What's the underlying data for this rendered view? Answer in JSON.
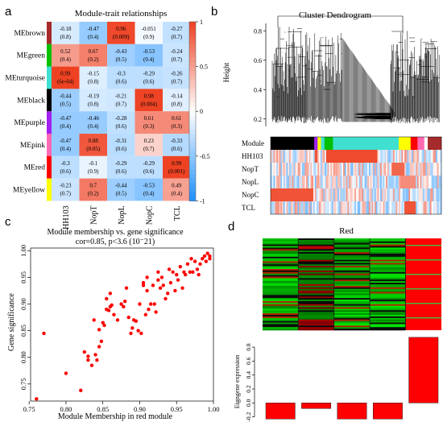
{
  "panels": {
    "a": "a",
    "b": "b",
    "c": "c",
    "d": "d"
  },
  "chart_data": [
    {
      "id": "module-trait",
      "type": "heatmap",
      "title": "Module-trait relationships",
      "rows": [
        "MEbrown",
        "MEgreen",
        "MEturquoise",
        "MEblack",
        "MEpurple",
        "MEpink",
        "MEred",
        "MEyellow"
      ],
      "row_colors": [
        "#a52a2a",
        "#00c000",
        "#40e0d0",
        "#000000",
        "#a020f0",
        "#ff69b4",
        "#ff0000",
        "#ffff00"
      ],
      "columns": [
        "HH103",
        "NopT",
        "NopL",
        "NopC",
        "TCL"
      ],
      "values": [
        [
          -0.18,
          -0.47,
          0.96,
          -0.051,
          -0.27
        ],
        [
          0.52,
          0.67,
          -0.43,
          -0.53,
          -0.24
        ],
        [
          0.99,
          -0.15,
          -0.3,
          -0.29,
          -0.26
        ],
        [
          -0.44,
          -0.19,
          -0.21,
          0.98,
          -0.14
        ],
        [
          -0.47,
          -0.46,
          -0.28,
          0.61,
          0.61
        ],
        [
          -0.47,
          0.88,
          -0.31,
          0.23,
          -0.33
        ],
        [
          -0.3,
          -0.1,
          -0.29,
          -0.29,
          0.99
        ],
        [
          -0.23,
          0.7,
          -0.44,
          -0.53,
          0.49
        ]
      ],
      "pvalues": [
        [
          "(0.8)",
          "(0.4)",
          "(0.009)",
          "(0.9)",
          "(0.7)"
        ],
        [
          "(0.4)",
          "(0.2)",
          "(0.5)",
          "(0.4)",
          "(0.7)"
        ],
        [
          "(6e-04)",
          "(0.8)",
          "(0.6)",
          "(0.6)",
          "(0.7)"
        ],
        [
          "(0.5)",
          "(0.8)",
          "(0.7)",
          "(0.004)",
          "(0.8)"
        ],
        [
          "(0.4)",
          "(0.4)",
          "(0.6)",
          "(0.3)",
          "(0.3)"
        ],
        [
          "(0.4)",
          "(0.05)",
          "(0.6)",
          "(0.7)",
          "(0.6)"
        ],
        [
          "(0.6)",
          "(0.9)",
          "(0.6)",
          "(0.6)",
          "(0.001)"
        ],
        [
          "(0.7)",
          "(0.2)",
          "(0.5)",
          "(0.4)",
          "(0.4)"
        ]
      ],
      "colorbar_ticks": [
        "1",
        "0.5",
        "0",
        "-0.5",
        "-1"
      ],
      "vmin": -1,
      "vmax": 1
    },
    {
      "id": "dendrogram",
      "type": "other",
      "title": "Cluster Dendrogram",
      "ylabel": "Height",
      "yticks": [
        "0.8",
        "0.6",
        "0.4",
        "0.2"
      ],
      "track_labels": [
        "Module",
        "HH103",
        "NopT",
        "NopL",
        "NopC",
        "TCL"
      ],
      "module_segments": [
        {
          "color": "#000000",
          "w": 0.255
        },
        {
          "color": "#a020f0",
          "w": 0.02
        },
        {
          "color": "#ffff00",
          "w": 0.02
        },
        {
          "color": "#40e0d0",
          "w": 0.02
        },
        {
          "color": "#00c000",
          "w": 0.05
        },
        {
          "color": "#40e0d0",
          "w": 0.385
        },
        {
          "color": "#ffff00",
          "w": 0.07
        },
        {
          "color": "#ff0000",
          "w": 0.04
        },
        {
          "color": "#ff69b4",
          "w": 0.04
        },
        {
          "color": "#ffffff",
          "w": 0.02
        },
        {
          "color": "#a52a2a",
          "w": 0.08
        }
      ]
    },
    {
      "id": "mm-gs",
      "type": "scatter",
      "title": "Module membership vs. gene significance",
      "subtitle": "cor=0.85, p<3.6 (10⁻21)",
      "xlabel": "Module Membership in red module",
      "ylabel": "Gene significance",
      "xticks": [
        0.75,
        0.8,
        0.85,
        0.9,
        0.95,
        1.0
      ],
      "yticks": [
        0.75,
        0.8,
        0.85,
        0.9,
        0.95,
        1.0
      ],
      "xlim": [
        0.752,
        1.0
      ],
      "ylim": [
        0.718,
        1.005
      ],
      "x": [
        0.76,
        0.77,
        0.8,
        0.82,
        0.825,
        0.83,
        0.83,
        0.835,
        0.838,
        0.84,
        0.842,
        0.845,
        0.845,
        0.848,
        0.85,
        0.852,
        0.855,
        0.855,
        0.858,
        0.86,
        0.86,
        0.862,
        0.865,
        0.87,
        0.875,
        0.878,
        0.88,
        0.882,
        0.885,
        0.888,
        0.89,
        0.892,
        0.895,
        0.898,
        0.9,
        0.902,
        0.905,
        0.905,
        0.908,
        0.91,
        0.91,
        0.912,
        0.915,
        0.918,
        0.92,
        0.922,
        0.925,
        0.925,
        0.928,
        0.93,
        0.932,
        0.935,
        0.938,
        0.94,
        0.942,
        0.945,
        0.948,
        0.95,
        0.952,
        0.955,
        0.958,
        0.96,
        0.962,
        0.965,
        0.968,
        0.97,
        0.972,
        0.975,
        0.978,
        0.98,
        0.982,
        0.985,
        0.988,
        0.99,
        0.992,
        0.995,
        0.995
      ],
      "y": [
        0.722,
        0.845,
        0.77,
        0.738,
        0.81,
        0.795,
        0.802,
        0.785,
        0.87,
        0.805,
        0.795,
        0.82,
        0.852,
        0.83,
        0.865,
        0.86,
        0.89,
        0.91,
        0.888,
        0.895,
        0.92,
        0.898,
        0.88,
        0.87,
        0.9,
        0.895,
        0.905,
        0.93,
        0.875,
        0.845,
        0.855,
        0.87,
        0.868,
        0.85,
        0.9,
        0.845,
        0.94,
        0.935,
        0.88,
        0.925,
        0.95,
        0.89,
        0.9,
        0.935,
        0.9,
        0.885,
        0.96,
        0.945,
        0.93,
        0.95,
        0.935,
        0.91,
        0.92,
        0.965,
        0.94,
        0.96,
        0.925,
        0.955,
        0.945,
        0.97,
        0.93,
        0.96,
        0.955,
        0.975,
        0.96,
        0.985,
        0.96,
        0.98,
        0.965,
        0.955,
        0.975,
        0.985,
        0.99,
        0.98,
        0.995,
        0.99,
        0.985
      ],
      "color": "#ff0000"
    },
    {
      "id": "red-eigengene",
      "type": "bar",
      "title": "Red",
      "ylabel": "Eigngene expression",
      "yticks": [
        "0.8",
        "0.6",
        "0.4",
        "0.2",
        "0.0",
        "-0.2"
      ],
      "values": [
        -0.23,
        -0.08,
        -0.23,
        -0.23,
        0.94
      ],
      "ylim": [
        -0.25,
        0.95
      ],
      "color": "#ff0000"
    }
  ]
}
